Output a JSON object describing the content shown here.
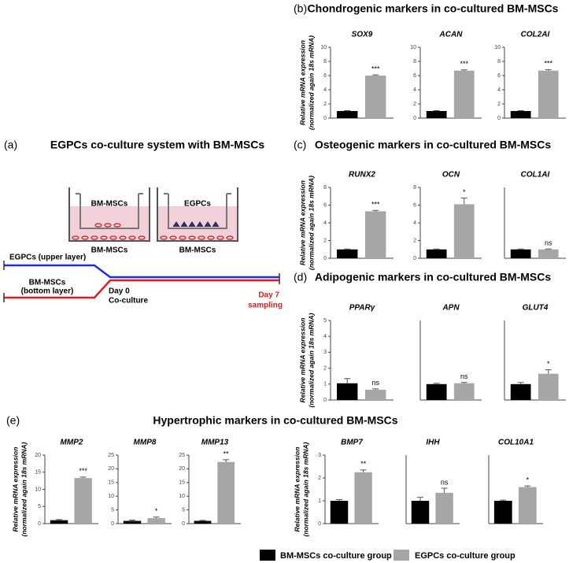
{
  "panels": [
    {
      "label": "(a)",
      "title": "EGPCs co-culture system with BM-MSCs"
    },
    {
      "label": "(b)",
      "title": "Chondrogenic markers in co-cultured BM-MSCs"
    },
    {
      "label": "(c)",
      "title": "Osteogenic markers in co-cultured BM-MSCs"
    },
    {
      "label": "(d)",
      "title": "Adipogenic markers in co-cultured BM-MSCs"
    },
    {
      "label": "(e)",
      "title": "Hypertrophic markers in co-cultured BM-MSCs"
    }
  ],
  "schematic": {
    "well1_inner": "BM-MSCs",
    "well2_inner": "EGPCs",
    "well1_bottom": "BM-MSCs",
    "well2_bottom": "BM-MSCs",
    "upper": "EGPCs (upper layer)",
    "bottom1": "BM-MSCs",
    "bottom2": "(bottom layer)",
    "day0": "Day 0",
    "coculture": "Co-culture",
    "day7": "Day 7",
    "sampling": "sampling"
  },
  "legend": [
    {
      "name": "BM-MSCs co-culture group",
      "color": "#000000"
    },
    {
      "name": "EGPCs co-culture group",
      "color": "#a6a6a6"
    }
  ],
  "chart_data": [
    {
      "type": "bar",
      "title": "SOX9",
      "ylabel": [
        "Relative mRNA expression",
        "(normalized again 18s mRNA)"
      ],
      "values": [
        1,
        6
      ],
      "errors": [
        0.05,
        0.1
      ],
      "annotation": "***",
      "ylim": [
        0,
        10
      ],
      "yticks": [
        0,
        2,
        4,
        6,
        8,
        10
      ]
    },
    {
      "type": "bar",
      "title": "ACAN",
      "values": [
        1,
        6.7
      ],
      "errors": [
        0.05,
        0.1
      ],
      "annotation": "***",
      "ylim": [
        0,
        10
      ],
      "yticks": [
        0,
        2,
        4,
        6,
        8,
        10
      ]
    },
    {
      "type": "bar",
      "title": "COL2AI",
      "values": [
        1,
        6.7
      ],
      "errors": [
        0.05,
        0.15
      ],
      "annotation": "***",
      "ylim": [
        0,
        10
      ],
      "yticks": [
        0,
        2,
        4,
        6,
        8,
        10
      ]
    },
    {
      "type": "bar",
      "title": "RUNX2",
      "ylabel": [
        "Relative mRNA expression",
        "(normalized again 18s mRNA)"
      ],
      "values": [
        1,
        5.3
      ],
      "errors": [
        0.05,
        0.1
      ],
      "annotation": "***",
      "ylim": [
        0,
        8
      ],
      "yticks": [
        0,
        2,
        4,
        6,
        8
      ]
    },
    {
      "type": "bar",
      "title": "OCN",
      "values": [
        1,
        6.1
      ],
      "errors": [
        0.05,
        0.7
      ],
      "annotation": "*",
      "ylim": [
        0,
        8
      ],
      "yticks": [
        0,
        2,
        4,
        6,
        8
      ]
    },
    {
      "type": "bar",
      "title": "COL1AI",
      "values": [
        1,
        1
      ],
      "errors": [
        0.05,
        0.05
      ],
      "annotation": "ns",
      "ylim": [
        0,
        8
      ],
      "yticks": []
    },
    {
      "type": "bar",
      "title": "PPARγ",
      "ylabel": [
        "Relative mRNA expression",
        "(normalized again 18s mRNA)"
      ],
      "values": [
        1.05,
        0.65
      ],
      "errors": [
        0.3,
        0.05
      ],
      "annotation": "ns",
      "ylim": [
        0,
        5
      ],
      "yticks": [
        0,
        1,
        2,
        3,
        4,
        5
      ]
    },
    {
      "type": "bar",
      "title": "APN",
      "values": [
        1,
        1.05
      ],
      "errors": [
        0.05,
        0.05
      ],
      "annotation": "ns",
      "ylim": [
        0,
        5
      ],
      "yticks": []
    },
    {
      "type": "bar",
      "title": "GLUT4",
      "values": [
        1,
        1.65
      ],
      "errors": [
        0.1,
        0.25
      ],
      "annotation": "*",
      "ylim": [
        0,
        5
      ],
      "yticks": []
    },
    {
      "type": "bar",
      "title": "MMP2",
      "ylabel": [
        "Relative mRNA expression",
        "(normalized again 18s mRNA)"
      ],
      "values": [
        1,
        13.3
      ],
      "errors": [
        0.2,
        0.3
      ],
      "annotation": "***",
      "ylim": [
        0,
        20
      ],
      "yticks": [
        0,
        5,
        10,
        15,
        20
      ]
    },
    {
      "type": "bar",
      "title": "MMP8",
      "values": [
        1,
        2
      ],
      "errors": [
        0.3,
        0.4
      ],
      "annotation": "*",
      "ylim": [
        0,
        25
      ],
      "yticks": [
        0,
        5,
        10,
        15,
        20,
        25
      ]
    },
    {
      "type": "bar",
      "title": "MMP13",
      "values": [
        1,
        22.5
      ],
      "errors": [
        0.2,
        0.8
      ],
      "annotation": "**",
      "ylim": [
        0,
        25
      ],
      "yticks": [
        0,
        5,
        10,
        15,
        20,
        25
      ]
    },
    {
      "type": "bar",
      "title": "BMP7",
      "ylabel": [
        "Relative mRNA expression",
        "(normalized again 18s mRNA)"
      ],
      "values": [
        1,
        2.25
      ],
      "errors": [
        0.05,
        0.1
      ],
      "annotation": "**",
      "ylim": [
        0,
        3
      ],
      "yticks": [
        0,
        1,
        2,
        3
      ]
    },
    {
      "type": "bar",
      "title": "IHH",
      "values": [
        1,
        1.35
      ],
      "errors": [
        0.15,
        0.2
      ],
      "annotation": "ns",
      "ylim": [
        0,
        3
      ],
      "yticks": []
    },
    {
      "type": "bar",
      "title": "COL10A1",
      "values": [
        1,
        1.6
      ],
      "errors": [
        0.03,
        0.05
      ],
      "annotation": "*",
      "ylim": [
        0,
        3
      ],
      "yticks": []
    }
  ]
}
